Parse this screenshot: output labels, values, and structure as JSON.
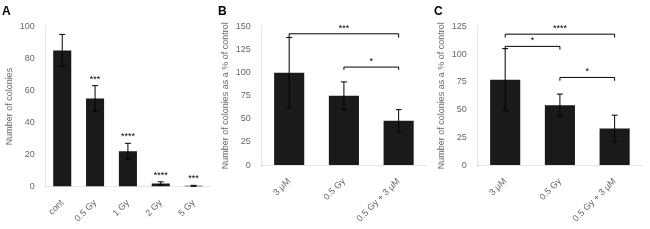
{
  "chart_data": [
    {
      "type": "bar",
      "title": "A",
      "categories": [
        "cont",
        "0.5 Gy",
        "1 Gy",
        "2 Gy",
        "5 Gy"
      ],
      "values": [
        85,
        55,
        22,
        2,
        0.5
      ],
      "errors": [
        10,
        8,
        5,
        1,
        0.3
      ],
      "color": "#1a1a1a",
      "ylabel": "Number of colonies",
      "ylim": [
        0,
        100
      ],
      "yticks": [
        0,
        20,
        40,
        60,
        80,
        100
      ],
      "grid": false,
      "annotations": [
        {
          "x": "0.5 Gy",
          "text": "***"
        },
        {
          "x": "1 Gy",
          "text": "****"
        },
        {
          "x": "2 Gy",
          "text": "****"
        },
        {
          "x": "5 Gy",
          "text": "***"
        }
      ]
    },
    {
      "type": "bar",
      "title": "B",
      "categories": [
        "3 μM",
        "0.5 Gy",
        "0.5 Gy + 3 μM"
      ],
      "values": [
        100,
        75,
        48
      ],
      "errors": [
        38,
        15,
        12
      ],
      "color": "#1a1a1a",
      "ylabel": "Number of colonies as a % of control",
      "ylim": [
        0,
        150
      ],
      "yticks": [
        0,
        25,
        50,
        75,
        100,
        125,
        150
      ],
      "grid": false,
      "annotations": [
        {
          "x1": "3 μM",
          "x2": "0.5 Gy + 3 μM",
          "y": 142,
          "tick_h": 4,
          "text": "***"
        },
        {
          "x1": "0.5 Gy",
          "x2": "0.5 Gy + 3 μM",
          "y": 106,
          "tick_h": 3,
          "text": "*"
        }
      ]
    },
    {
      "type": "bar",
      "title": "C",
      "categories": [
        "3 μM",
        "0.5 Gy",
        "0.5 Gy + 3 μM"
      ],
      "values": [
        77,
        54,
        33
      ],
      "errors": [
        28,
        10,
        12
      ],
      "color": "#1a1a1a",
      "ylabel": "Number of colonies as a % of control",
      "ylim": [
        0,
        125
      ],
      "yticks": [
        0,
        25,
        50,
        75,
        100,
        125
      ],
      "grid": false,
      "annotations": [
        {
          "x1": "3 μM",
          "x2": "0.5 Gy + 3 μM",
          "y": 118,
          "tick_h": 3,
          "text": "****"
        },
        {
          "x1": "3 μM",
          "x2": "0.5 Gy",
          "y": 107,
          "tick_h": 3,
          "text": "*"
        },
        {
          "x1": "0.5 Gy",
          "x2": "0.5 Gy + 3 μM",
          "y": 79,
          "tick_h": 3,
          "text": "*"
        }
      ]
    }
  ]
}
